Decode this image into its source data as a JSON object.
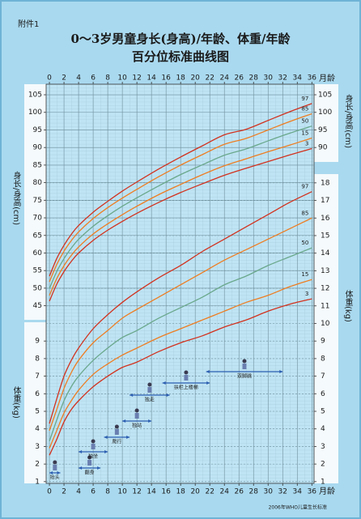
{
  "header_note": "附件1",
  "chart_data": {
    "type": "line",
    "title": [
      "0～3岁男童身长(身高)/年龄、体重/年龄",
      "百分位标准曲线图"
    ],
    "x_label": "月龄",
    "y_label": "身长/身高(cm)",
    "y2_label": "体重(kg)",
    "source": "2006年WHO儿童生长标准",
    "grid": true,
    "xlim": [
      -0.45,
      36.3
    ],
    "xticks": [
      0,
      2,
      4,
      6,
      8,
      10,
      12,
      14,
      16,
      18,
      20,
      22,
      24,
      26,
      28,
      30,
      32,
      34,
      36
    ],
    "ylim": [
      41,
      108
    ],
    "yticks": [
      45,
      50,
      55,
      60,
      65,
      70,
      75,
      80,
      85,
      90,
      95,
      100,
      105
    ],
    "yticks_right": [
      90,
      95,
      100,
      105
    ],
    "y2lim": [
      0.9,
      18.5
    ],
    "y2ticks": [
      1,
      2,
      3,
      4,
      5,
      6,
      7,
      8,
      9,
      10,
      11,
      12,
      13,
      14,
      15,
      16,
      17,
      18
    ],
    "y2ticks_left": [
      1,
      2,
      3,
      4,
      5,
      6,
      7,
      8,
      9
    ],
    "x": [
      0,
      1,
      2,
      3,
      4,
      6,
      8,
      10,
      12,
      15,
      18,
      21,
      24,
      27,
      30,
      33,
      36
    ],
    "series": [
      {
        "name": "97",
        "color": "#d2321e",
        "axis": "y",
        "values": [
          53.4,
          58.4,
          62.2,
          65.3,
          67.8,
          71.6,
          74.7,
          77.6,
          80.2,
          83.9,
          87.3,
          90.5,
          93.6,
          95.2,
          97.7,
          100.2,
          102.5
        ]
      },
      {
        "name": "85",
        "color": "#ee7d22",
        "axis": "y",
        "values": [
          51.8,
          56.7,
          60.5,
          63.5,
          66.0,
          69.8,
          72.9,
          75.6,
          78.1,
          81.7,
          85.0,
          88.0,
          90.9,
          92.6,
          95.0,
          97.4,
          99.6
        ]
      },
      {
        "name": "50",
        "color": "#6aa88c",
        "axis": "y",
        "values": [
          49.9,
          54.7,
          58.4,
          61.4,
          63.9,
          67.6,
          70.6,
          73.3,
          75.7,
          79.1,
          82.3,
          85.1,
          87.8,
          89.6,
          91.9,
          94.1,
          96.1
        ]
      },
      {
        "name": "15",
        "color": "#ee7d22",
        "axis": "y",
        "values": [
          47.9,
          52.7,
          56.4,
          59.3,
          61.7,
          65.4,
          68.3,
          70.9,
          73.3,
          76.6,
          79.5,
          82.3,
          84.8,
          86.8,
          88.8,
          90.7,
          92.7
        ]
      },
      {
        "name": "3",
        "color": "#d2321e",
        "axis": "y",
        "values": [
          46.3,
          51.1,
          54.7,
          57.6,
          60.0,
          63.6,
          66.5,
          69.0,
          71.3,
          74.4,
          77.2,
          79.7,
          82.1,
          84.1,
          86.0,
          87.9,
          89.7
        ]
      },
      {
        "name": "97",
        "color": "#d2321e",
        "axis": "y2",
        "values": [
          4.3,
          5.7,
          7.0,
          7.9,
          8.6,
          9.7,
          10.5,
          11.2,
          11.8,
          12.6,
          13.3,
          14.1,
          14.8,
          15.5,
          16.2,
          16.9,
          17.5
        ]
      },
      {
        "name": "85",
        "color": "#ee7d22",
        "axis": "y2",
        "values": [
          3.9,
          5.1,
          6.3,
          7.2,
          7.9,
          8.9,
          9.6,
          10.3,
          10.8,
          11.5,
          12.2,
          12.9,
          13.6,
          14.2,
          14.8,
          15.4,
          16.0
        ]
      },
      {
        "name": "50",
        "color": "#6aa88c",
        "axis": "y2",
        "values": [
          3.3,
          4.5,
          5.6,
          6.4,
          7.0,
          7.9,
          8.6,
          9.2,
          9.6,
          10.3,
          10.9,
          11.5,
          12.2,
          12.7,
          13.3,
          13.8,
          14.3
        ]
      },
      {
        "name": "15",
        "color": "#ee7d22",
        "axis": "y2",
        "values": [
          2.9,
          3.9,
          4.9,
          5.6,
          6.2,
          7.1,
          7.7,
          8.2,
          8.6,
          9.2,
          9.7,
          10.2,
          10.7,
          11.2,
          11.6,
          12.1,
          12.5
        ]
      },
      {
        "name": "3",
        "color": "#d2321e",
        "axis": "y2",
        "values": [
          2.5,
          3.4,
          4.4,
          5.1,
          5.6,
          6.4,
          7.0,
          7.5,
          7.8,
          8.4,
          8.9,
          9.3,
          9.8,
          10.2,
          10.7,
          11.1,
          11.4
        ]
      }
    ],
    "milestones": [
      {
        "label": "抬头",
        "range": [
          0,
          1.5
        ]
      },
      {
        "label": "翻身",
        "range": [
          4,
          7
        ]
      },
      {
        "label": "独坐",
        "range": [
          4,
          8
        ]
      },
      {
        "label": "爬行",
        "range": [
          7.5,
          11
        ]
      },
      {
        "label": "独站",
        "range": [
          10,
          14
        ]
      },
      {
        "label": "独走",
        "range": [
          11,
          16.5
        ]
      },
      {
        "label": "扶栏上楼梯",
        "range": [
          15.5,
          22
        ]
      },
      {
        "label": "双脚跳",
        "range": [
          21.5,
          32
        ]
      }
    ]
  }
}
